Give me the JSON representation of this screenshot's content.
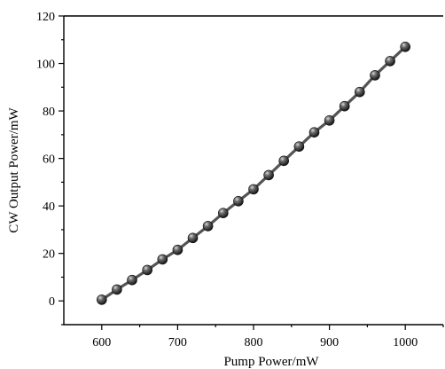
{
  "chart_data": {
    "type": "line",
    "xlabel": "Pump Power/mW",
    "ylabel": "CW Output Power/mW",
    "xlim": [
      550,
      1050
    ],
    "ylim": [
      -10,
      120
    ],
    "x_ticks": [
      600,
      700,
      800,
      900,
      1000
    ],
    "y_ticks": [
      0,
      20,
      40,
      60,
      80,
      100,
      120
    ],
    "x_tick_labels": [
      "600",
      "700",
      "800",
      "900",
      "1000"
    ],
    "y_tick_labels": [
      "0",
      "20",
      "40",
      "60",
      "80",
      "100",
      "120"
    ],
    "grid": false,
    "legend": "none",
    "marker": "sphere",
    "colors": {
      "line": "#555555",
      "marker": "#2a2a2a",
      "axis": "#000000"
    },
    "series": [
      {
        "x": [
          600,
          620,
          640,
          660,
          680,
          700,
          720,
          740,
          760,
          780,
          800,
          820,
          840,
          860,
          880,
          900,
          920,
          940,
          960,
          980,
          1000
        ],
        "y": [
          0.5,
          4.8,
          8.8,
          13.0,
          17.5,
          21.5,
          26.5,
          31.5,
          37.0,
          42.0,
          47.0,
          53.0,
          59.0,
          65.0,
          71.0,
          76.0,
          82.0,
          88.0,
          95.0,
          101.0,
          107.0
        ]
      }
    ]
  }
}
